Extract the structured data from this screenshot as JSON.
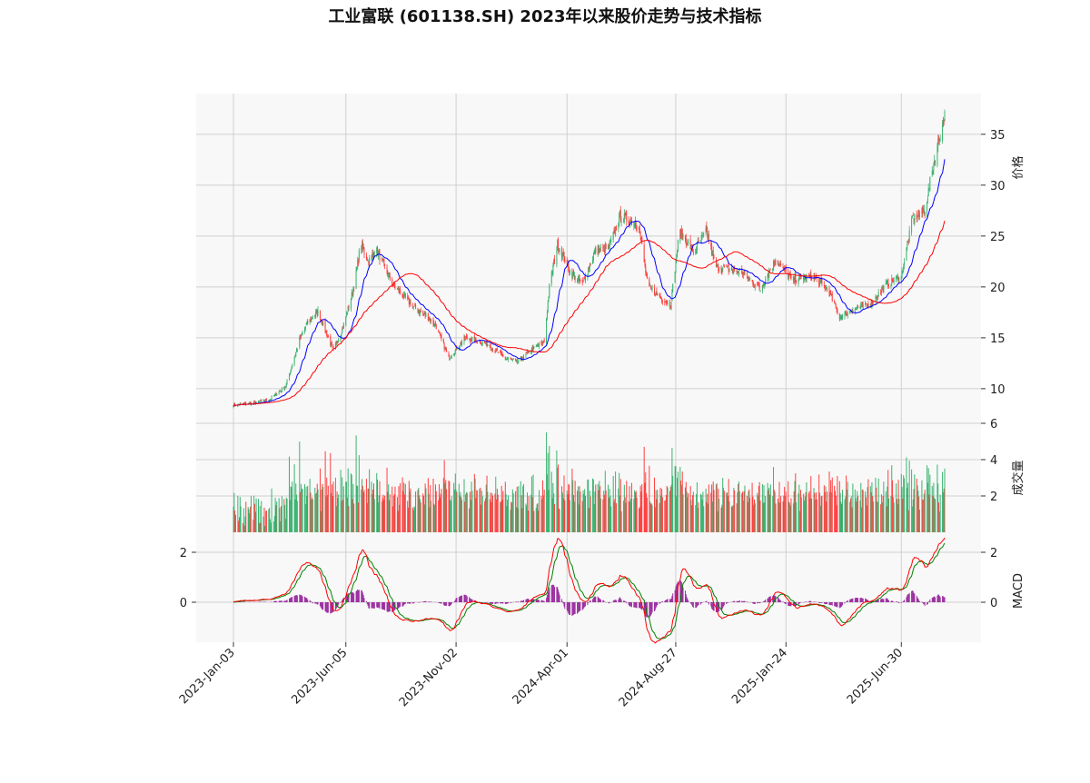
{
  "chart_data": {
    "type": "candlestick",
    "title": "工业富联 (601138.SH) 2023年以来股价走势与技术指标",
    "x_tick_labels": [
      "2023-Jan-03",
      "2023-Jun-05",
      "2023-Nov-02",
      "2024-Apr-01",
      "2024-Aug-27",
      "2025-Jan-24",
      "2025-Jun-30"
    ],
    "x_ticks": [
      "2023-01-03",
      "2023-06-05",
      "2023-11-02",
      "2024-04-01",
      "2024-08-27",
      "2025-01-24",
      "2025-06-30"
    ],
    "x_range": [
      "2023-01-03",
      "2025-08-28"
    ],
    "grid": true,
    "price_panel": {
      "ylabel": "价格",
      "y_ticks": [
        10,
        15,
        20,
        25,
        30,
        35
      ],
      "ylim": [
        6.6,
        39
      ],
      "close_anchors": [
        [
          "2023-01-03",
          8.4
        ],
        [
          "2023-02-01",
          8.6
        ],
        [
          "2023-02-22",
          9.0
        ],
        [
          "2023-03-15",
          10.2
        ],
        [
          "2023-04-03",
          14.8
        ],
        [
          "2023-04-12",
          16.3
        ],
        [
          "2023-04-28",
          17.6
        ],
        [
          "2023-05-19",
          13.7
        ],
        [
          "2023-06-01",
          16.0
        ],
        [
          "2023-06-16",
          20.0
        ],
        [
          "2023-06-25",
          24.2
        ],
        [
          "2023-07-06",
          22.5
        ],
        [
          "2023-07-16",
          23.7
        ],
        [
          "2023-08-08",
          20.2
        ],
        [
          "2023-09-05",
          18.0
        ],
        [
          "2023-09-25",
          17.0
        ],
        [
          "2023-10-06",
          16.1
        ],
        [
          "2023-10-23",
          13.0
        ],
        [
          "2023-11-14",
          15.0
        ],
        [
          "2023-12-15",
          14.4
        ],
        [
          "2024-01-07",
          13.0
        ],
        [
          "2024-01-25",
          12.6
        ],
        [
          "2024-02-12",
          13.8
        ],
        [
          "2024-03-01",
          14.6
        ],
        [
          "2024-03-08",
          20.0
        ],
        [
          "2024-03-19",
          24.2
        ],
        [
          "2024-04-05",
          21.5
        ],
        [
          "2024-04-22",
          20.3
        ],
        [
          "2024-05-10",
          23.6
        ],
        [
          "2024-05-28",
          23.8
        ],
        [
          "2024-06-12",
          27.0
        ],
        [
          "2024-07-08",
          26.0
        ],
        [
          "2024-07-20",
          20.0
        ],
        [
          "2024-08-20",
          18.2
        ],
        [
          "2024-09-01",
          25.5
        ],
        [
          "2024-09-20",
          23.5
        ],
        [
          "2024-10-08",
          25.5
        ],
        [
          "2024-10-20",
          22.0
        ],
        [
          "2024-11-25",
          21.5
        ],
        [
          "2024-12-20",
          19.8
        ],
        [
          "2025-01-10",
          22.7
        ],
        [
          "2025-02-01",
          20.7
        ],
        [
          "2025-03-01",
          21.0
        ],
        [
          "2025-03-22",
          19.8
        ],
        [
          "2025-04-07",
          17.0
        ],
        [
          "2025-04-25",
          17.8
        ],
        [
          "2025-05-20",
          18.4
        ],
        [
          "2025-06-10",
          20.3
        ],
        [
          "2025-06-30",
          21.0
        ],
        [
          "2025-07-15",
          26.7
        ],
        [
          "2025-08-01",
          27.5
        ],
        [
          "2025-08-10",
          31.0
        ],
        [
          "2025-08-20",
          34.5
        ],
        [
          "2025-08-28",
          36.8
        ]
      ],
      "ma_fast": {
        "color": "#0000ff"
      },
      "ma_slow": {
        "color": "#ff0000"
      },
      "up_color": "#3cb371",
      "down_color": "#ff4040"
    },
    "volume_panel": {
      "ylabel": "成交量",
      "y_ticks": [
        2,
        4,
        6
      ],
      "ylim": [
        0,
        6
      ]
    },
    "macd_panel": {
      "ylabel": "MACD",
      "y_ticks": [
        0,
        2
      ],
      "ylim": [
        -1.6,
        2.8
      ],
      "dif_color": "#ff0000",
      "dea_color": "#008000",
      "hist_color": "#9b30a0"
    }
  }
}
